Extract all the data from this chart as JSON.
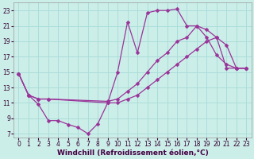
{
  "xlabel": "Windchill (Refroidissement éolien,°C)",
  "bg_color": "#cceee8",
  "grid_color": "#aaddda",
  "line_color": "#993399",
  "xlim": [
    -0.5,
    23.5
  ],
  "ylim": [
    6.5,
    24.0
  ],
  "xticks": [
    0,
    1,
    2,
    3,
    4,
    5,
    6,
    7,
    8,
    9,
    10,
    11,
    12,
    13,
    14,
    15,
    16,
    17,
    18,
    19,
    20,
    21,
    22,
    23
  ],
  "yticks": [
    7,
    9,
    11,
    13,
    15,
    17,
    19,
    21,
    23
  ],
  "lines": [
    {
      "x": [
        0,
        1,
        2,
        3,
        4,
        5,
        6,
        7,
        8,
        9,
        10,
        11,
        12,
        13,
        14,
        15,
        16,
        17,
        18,
        19,
        20,
        21,
        22,
        23
      ],
      "y": [
        14.8,
        12.0,
        10.8,
        8.7,
        8.7,
        8.2,
        7.8,
        7.0,
        8.3,
        11.0,
        15.0,
        21.5,
        17.5,
        22.7,
        23.0,
        23.0,
        23.2,
        21.0,
        21.0,
        19.5,
        17.2,
        16.0,
        15.5,
        15.5
      ]
    },
    {
      "x": [
        0,
        1,
        2,
        3,
        9,
        10,
        11,
        12,
        13,
        14,
        15,
        16,
        17,
        18,
        19,
        20,
        21,
        22,
        23
      ],
      "y": [
        14.8,
        12.0,
        11.5,
        11.5,
        11.2,
        11.5,
        12.5,
        13.5,
        15.0,
        16.5,
        17.5,
        19.0,
        19.5,
        21.0,
        20.5,
        19.5,
        18.5,
        15.5,
        15.5
      ]
    },
    {
      "x": [
        0,
        1,
        2,
        3,
        9,
        10,
        11,
        12,
        13,
        14,
        15,
        16,
        17,
        18,
        19,
        20,
        21,
        22,
        23
      ],
      "y": [
        14.8,
        12.0,
        11.5,
        11.5,
        11.0,
        11.0,
        11.5,
        12.0,
        13.0,
        14.0,
        15.0,
        16.0,
        17.0,
        18.0,
        19.0,
        19.5,
        15.5,
        15.5,
        15.5
      ]
    }
  ],
  "marker_size": 2.5,
  "line_width": 0.9,
  "tick_fontsize": 5.5,
  "xlabel_fontsize": 6.5
}
